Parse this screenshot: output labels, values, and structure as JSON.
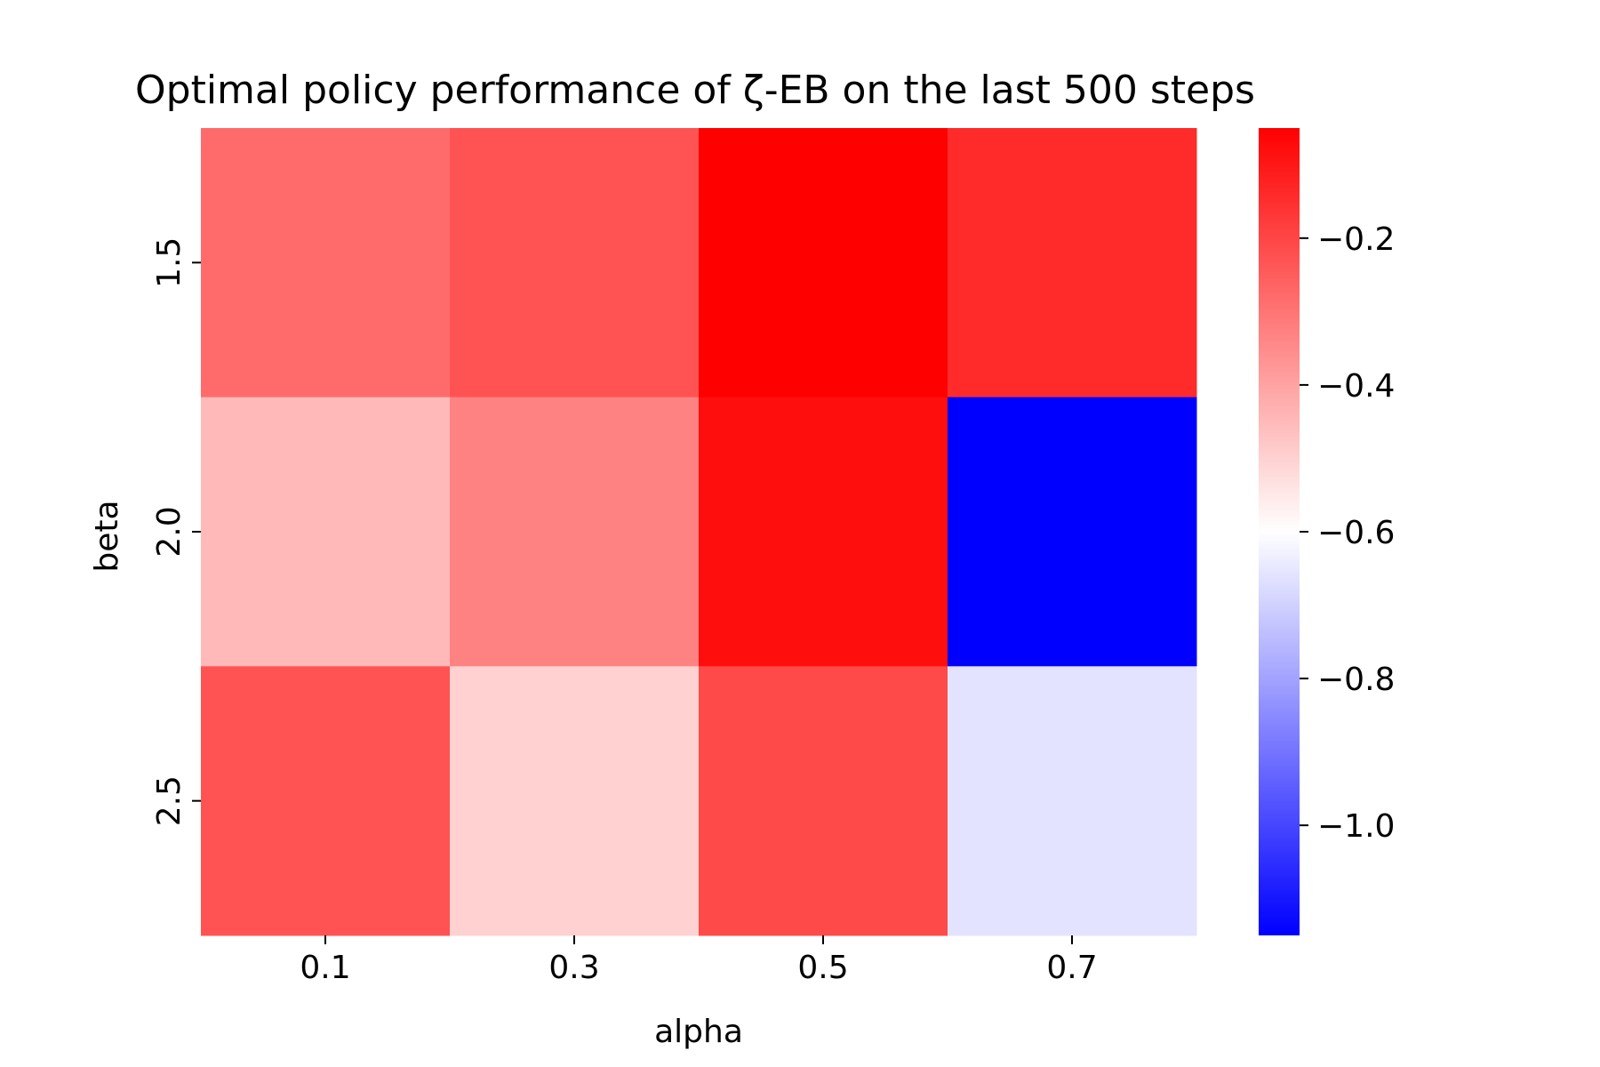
{
  "chart_data": {
    "type": "heatmap",
    "title": "Optimal policy performance of ζ-EB on the last 500 steps",
    "xlabel": "alpha",
    "ylabel": "beta",
    "x_categories": [
      "0.1",
      "0.3",
      "0.5",
      "0.7"
    ],
    "y_categories": [
      "1.5",
      "2.0",
      "2.5"
    ],
    "values": [
      [
        -0.28,
        -0.23,
        -0.05,
        -0.14
      ],
      [
        -0.45,
        -0.33,
        -0.08,
        -1.15
      ],
      [
        -0.23,
        -0.5,
        -0.21,
        -0.66
      ]
    ],
    "colorbar": {
      "min": -1.15,
      "max": -0.05,
      "center": -0.6,
      "ticks": [
        -1.0,
        -0.8,
        -0.6,
        -0.4,
        -0.2
      ],
      "tick_labels": [
        "−1.0",
        "−0.8",
        "−0.6",
        "−0.4",
        "−0.2"
      ]
    },
    "colormap": {
      "low": "#0000ff",
      "mid": "#ffffff",
      "high": "#ff0000"
    },
    "grid": false
  }
}
